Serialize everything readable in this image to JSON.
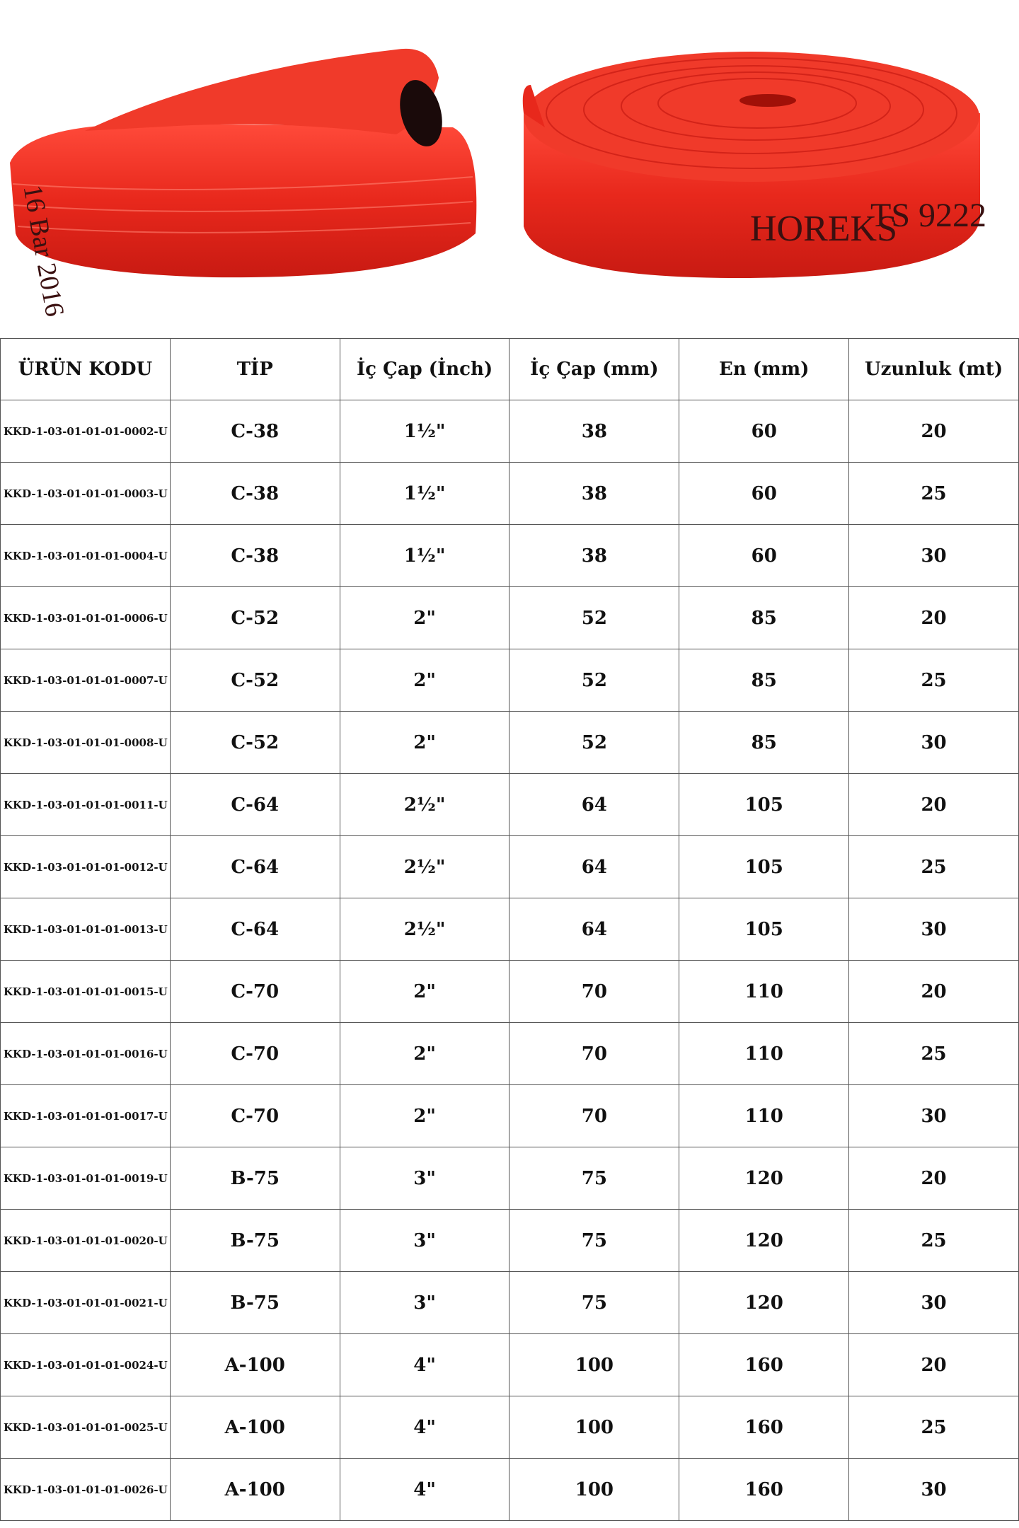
{
  "photos": {
    "left_print": "16 Bar 2016",
    "right_brand": "HOREKS",
    "right_standard": "TS 9222"
  },
  "table": {
    "headers": [
      "ÜRÜN KODU",
      "TİP",
      "İç Çap (İnch)",
      "İç Çap (mm)",
      "En (mm)",
      "Uzunluk (mt)"
    ],
    "rows": [
      [
        "KKD-1-03-01-01-01-0002-U",
        "C-38",
        "1½\"",
        "38",
        "60",
        "20"
      ],
      [
        "KKD-1-03-01-01-01-0003-U",
        "C-38",
        "1½\"",
        "38",
        "60",
        "25"
      ],
      [
        "KKD-1-03-01-01-01-0004-U",
        "C-38",
        "1½\"",
        "38",
        "60",
        "30"
      ],
      [
        "KKD-1-03-01-01-01-0006-U",
        "C-52",
        "2\"",
        "52",
        "85",
        "20"
      ],
      [
        "KKD-1-03-01-01-01-0007-U",
        "C-52",
        "2\"",
        "52",
        "85",
        "25"
      ],
      [
        "KKD-1-03-01-01-01-0008-U",
        "C-52",
        "2\"",
        "52",
        "85",
        "30"
      ],
      [
        "KKD-1-03-01-01-01-0011-U",
        "C-64",
        "2½\"",
        "64",
        "105",
        "20"
      ],
      [
        "KKD-1-03-01-01-01-0012-U",
        "C-64",
        "2½\"",
        "64",
        "105",
        "25"
      ],
      [
        "KKD-1-03-01-01-01-0013-U",
        "C-64",
        "2½\"",
        "64",
        "105",
        "30"
      ],
      [
        "KKD-1-03-01-01-01-0015-U",
        "C-70",
        "2\"",
        "70",
        "110",
        "20"
      ],
      [
        "KKD-1-03-01-01-01-0016-U",
        "C-70",
        "2\"",
        "70",
        "110",
        "25"
      ],
      [
        "KKD-1-03-01-01-01-0017-U",
        "C-70",
        "2\"",
        "70",
        "110",
        "30"
      ],
      [
        "KKD-1-03-01-01-01-0019-U",
        "B-75",
        "3\"",
        "75",
        "120",
        "20"
      ],
      [
        "KKD-1-03-01-01-01-0020-U",
        "B-75",
        "3\"",
        "75",
        "120",
        "25"
      ],
      [
        "KKD-1-03-01-01-01-0021-U",
        "B-75",
        "3\"",
        "75",
        "120",
        "30"
      ],
      [
        "KKD-1-03-01-01-01-0024-U",
        "A-100",
        "4\"",
        "100",
        "160",
        "20"
      ],
      [
        "KKD-1-03-01-01-01-0025-U",
        "A-100",
        "4\"",
        "100",
        "160",
        "25"
      ],
      [
        "KKD-1-03-01-01-01-0026-U",
        "A-100",
        "4\"",
        "100",
        "160",
        "30"
      ]
    ]
  }
}
